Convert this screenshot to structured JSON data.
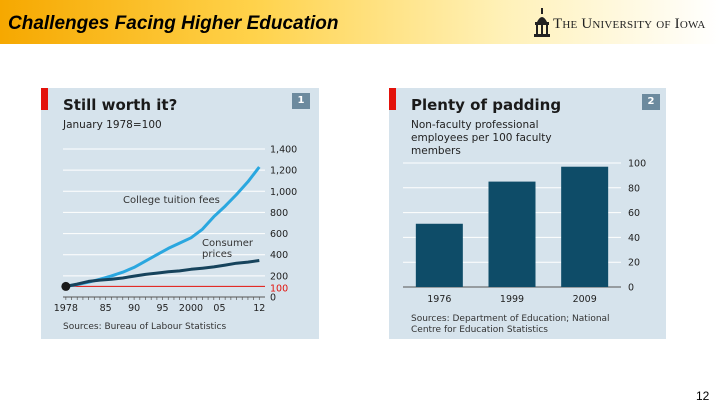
{
  "slide": {
    "title": "Challenges Facing Higher Education",
    "logo_text": "The University of Iowa",
    "page_number": "12"
  },
  "colors": {
    "header_gold": "#f6a800",
    "panel_bg": "#d6e3ec",
    "econ_red": "#e3120b",
    "tuition_line": "#2aa7df",
    "cpi_line": "#16435c",
    "bar_fill": "#0e4c68"
  },
  "chart_data": [
    {
      "type": "line",
      "badge": "1",
      "title": "Still worth it?",
      "subtitle": "January 1978=100",
      "source": "Sources: Bureau of Labour Statistics",
      "x_ticks": [
        "1978",
        "85",
        "90",
        "95",
        "2000",
        "05",
        "12"
      ],
      "x_tick_years": [
        1978,
        1985,
        1990,
        1995,
        2000,
        2005,
        2012
      ],
      "xlim": [
        1977.5,
        2013
      ],
      "ylim": [
        0,
        1400
      ],
      "y_ticks": [
        0,
        200,
        400,
        600,
        800,
        1000,
        1200,
        1400
      ],
      "y_tick_labels": [
        "0",
        "200",
        "400",
        "600",
        "800",
        "1,000",
        "1,200",
        "1,400"
      ],
      "reference_line": {
        "value": 100,
        "label": "100"
      },
      "grid": true,
      "series": [
        {
          "name": "College tuition fees",
          "x": [
            1978,
            1980,
            1982,
            1984,
            1986,
            1988,
            1990,
            1992,
            1994,
            1996,
            1998,
            2000,
            2002,
            2004,
            2006,
            2008,
            2010,
            2012
          ],
          "y": [
            100,
            118,
            140,
            168,
            200,
            235,
            280,
            340,
            400,
            460,
            510,
            560,
            640,
            760,
            860,
            970,
            1090,
            1230
          ]
        },
        {
          "name": "Consumer prices",
          "x": [
            1978,
            1980,
            1982,
            1984,
            1986,
            1988,
            1990,
            1992,
            1994,
            1996,
            1998,
            2000,
            2002,
            2004,
            2006,
            2008,
            2010,
            2012
          ],
          "y": [
            100,
            122,
            148,
            160,
            168,
            180,
            198,
            214,
            226,
            238,
            247,
            262,
            272,
            285,
            302,
            320,
            330,
            345
          ]
        }
      ]
    },
    {
      "type": "bar",
      "badge": "2",
      "title": "Plenty of padding",
      "subtitle": "Non-faculty professional employees per 100 faculty members",
      "source": "Sources: Department of Education; National Centre for Education Statistics",
      "categories": [
        "1976",
        "1999",
        "2009"
      ],
      "values": [
        51,
        85,
        97
      ],
      "ylim": [
        0,
        100
      ],
      "y_ticks": [
        0,
        20,
        40,
        60,
        80,
        100
      ],
      "y_tick_labels": [
        "0",
        "20",
        "40",
        "60",
        "80",
        "100"
      ],
      "grid": true
    }
  ]
}
